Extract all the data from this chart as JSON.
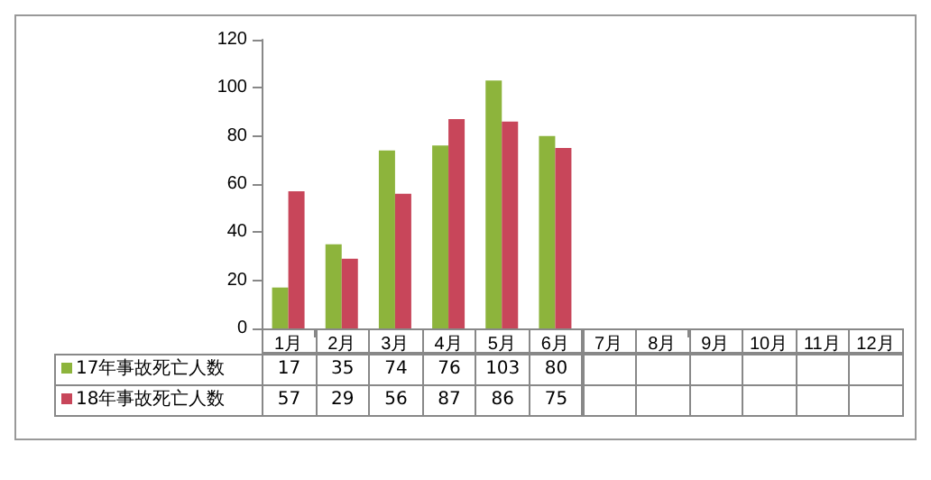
{
  "chart_data": {
    "type": "bar",
    "categories": [
      "1月",
      "2月",
      "3月",
      "4月",
      "5月",
      "6月",
      "7月",
      "8月",
      "9月",
      "10月",
      "11月",
      "12月"
    ],
    "series": [
      {
        "name": "17年事故死亡人数",
        "color": "#8db43c",
        "values": [
          17,
          35,
          74,
          76,
          103,
          80,
          null,
          null,
          null,
          null,
          null,
          null
        ]
      },
      {
        "name": "18年事故死亡人数",
        "color": "#c8465a",
        "values": [
          57,
          29,
          56,
          87,
          86,
          75,
          null,
          null,
          null,
          null,
          null,
          null
        ]
      }
    ],
    "ylim": [
      0,
      120
    ],
    "yticks": [
      0,
      20,
      40,
      60,
      80,
      100,
      120
    ],
    "data_labels": true,
    "legend": "bottom left"
  }
}
